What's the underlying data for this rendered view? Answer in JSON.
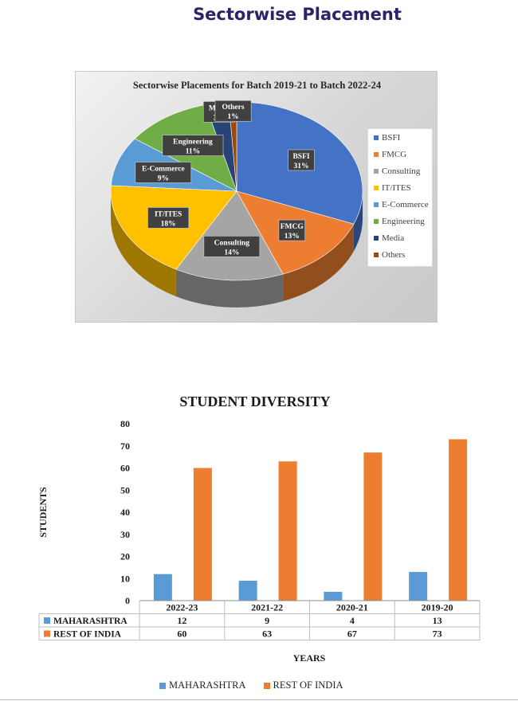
{
  "page_title": "Sectorwise Placement",
  "chart_data": [
    {
      "type": "pie",
      "title": "Sectorwise Placements for Batch 2019-21 to Batch 2022-24",
      "legend_position": "right",
      "slices": [
        {
          "label": "BSFI",
          "value": 31,
          "value_label": "31%",
          "color": "#4472c4"
        },
        {
          "label": "FMCG",
          "value": 13,
          "value_label": "13%",
          "color": "#ed7d31"
        },
        {
          "label": "Consulting",
          "value": 14,
          "value_label": "14%",
          "color": "#a5a5a5"
        },
        {
          "label": "IT/ITES",
          "value": 18,
          "value_label": "18%",
          "color": "#ffc000"
        },
        {
          "label": "E-Commerce",
          "value": 9,
          "value_label": "9%",
          "color": "#5b9bd5"
        },
        {
          "label": "Engineering",
          "value": 11,
          "value_label": "11%",
          "color": "#70ad47"
        },
        {
          "label": "Media",
          "value": 3,
          "value_label": "3%",
          "color": "#264478"
        },
        {
          "label": "Others",
          "value": 1,
          "value_label": "1%",
          "color": "#9e480e"
        }
      ]
    },
    {
      "type": "bar",
      "title": "STUDENT DIVERSITY",
      "xlabel": "YEARS",
      "ylabel": "STUDENTS",
      "ylim": [
        0,
        80
      ],
      "yticks": [
        0,
        10,
        20,
        30,
        40,
        50,
        60,
        70,
        80
      ],
      "grid": false,
      "legend_position": "bottom",
      "categories": [
        "2022-23",
        "2021-22",
        "2020-21",
        "2019-20"
      ],
      "series": [
        {
          "name": "MAHARASHTRA",
          "values": [
            12,
            9,
            4,
            13
          ],
          "color": "#5b9bd5"
        },
        {
          "name": "REST OF INDIA",
          "values": [
            60,
            63,
            67,
            73
          ],
          "color": "#ed7d31"
        }
      ]
    }
  ]
}
